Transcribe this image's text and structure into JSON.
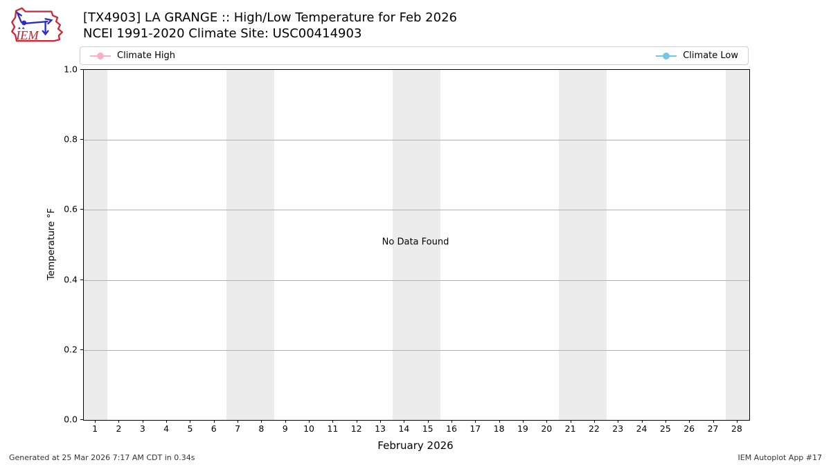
{
  "header": {
    "title": "[TX4903] LA GRANGE :: High/Low Temperature for Feb 2026",
    "subtitle": "NCEI 1991-2020 Climate Site: USC00414903",
    "logo_text": "IEM"
  },
  "legend": {
    "items": [
      {
        "label": "Climate High",
        "color": "#f9b1c2"
      },
      {
        "label": "Climate Low",
        "color": "#74c6e6"
      }
    ]
  },
  "chart_data": {
    "type": "line",
    "title": "[TX4903] LA GRANGE :: High/Low Temperature for Feb 2026",
    "subtitle": "NCEI 1991-2020 Climate Site: USC00414903",
    "xlabel": "February 2026",
    "ylabel": "Temperature °F",
    "xlim": [
      0.5,
      28.5
    ],
    "ylim": [
      0.0,
      1.0
    ],
    "xticks": [
      1,
      2,
      3,
      4,
      5,
      6,
      7,
      8,
      9,
      10,
      11,
      12,
      13,
      14,
      15,
      16,
      17,
      18,
      19,
      20,
      21,
      22,
      23,
      24,
      25,
      26,
      27,
      28
    ],
    "ytick_labels": [
      "0.0",
      "0.2",
      "0.4",
      "0.6",
      "0.8",
      "1.0"
    ],
    "ytick_values": [
      0.0,
      0.2,
      0.4,
      0.6,
      0.8,
      1.0
    ],
    "grid": "horizontal",
    "grid_color": "#b2b2b2",
    "weekend_bands": [
      [
        0.5,
        1.5
      ],
      [
        6.5,
        8.5
      ],
      [
        13.5,
        15.5
      ],
      [
        20.5,
        22.5
      ],
      [
        27.5,
        28.5
      ]
    ],
    "band_color": "#ececec",
    "legend_position": "top",
    "series": [
      {
        "name": "Climate High",
        "color": "#f9b1c2",
        "x": [],
        "y": []
      },
      {
        "name": "Climate Low",
        "color": "#74c6e6",
        "x": [],
        "y": []
      }
    ],
    "annotation": "No Data Found"
  },
  "no_data_message": "No Data Found",
  "footer": {
    "generated": "Generated at 25 Mar 2026 7:17 AM CDT in 0.34s",
    "app": "IEM Autoplot App #17"
  }
}
